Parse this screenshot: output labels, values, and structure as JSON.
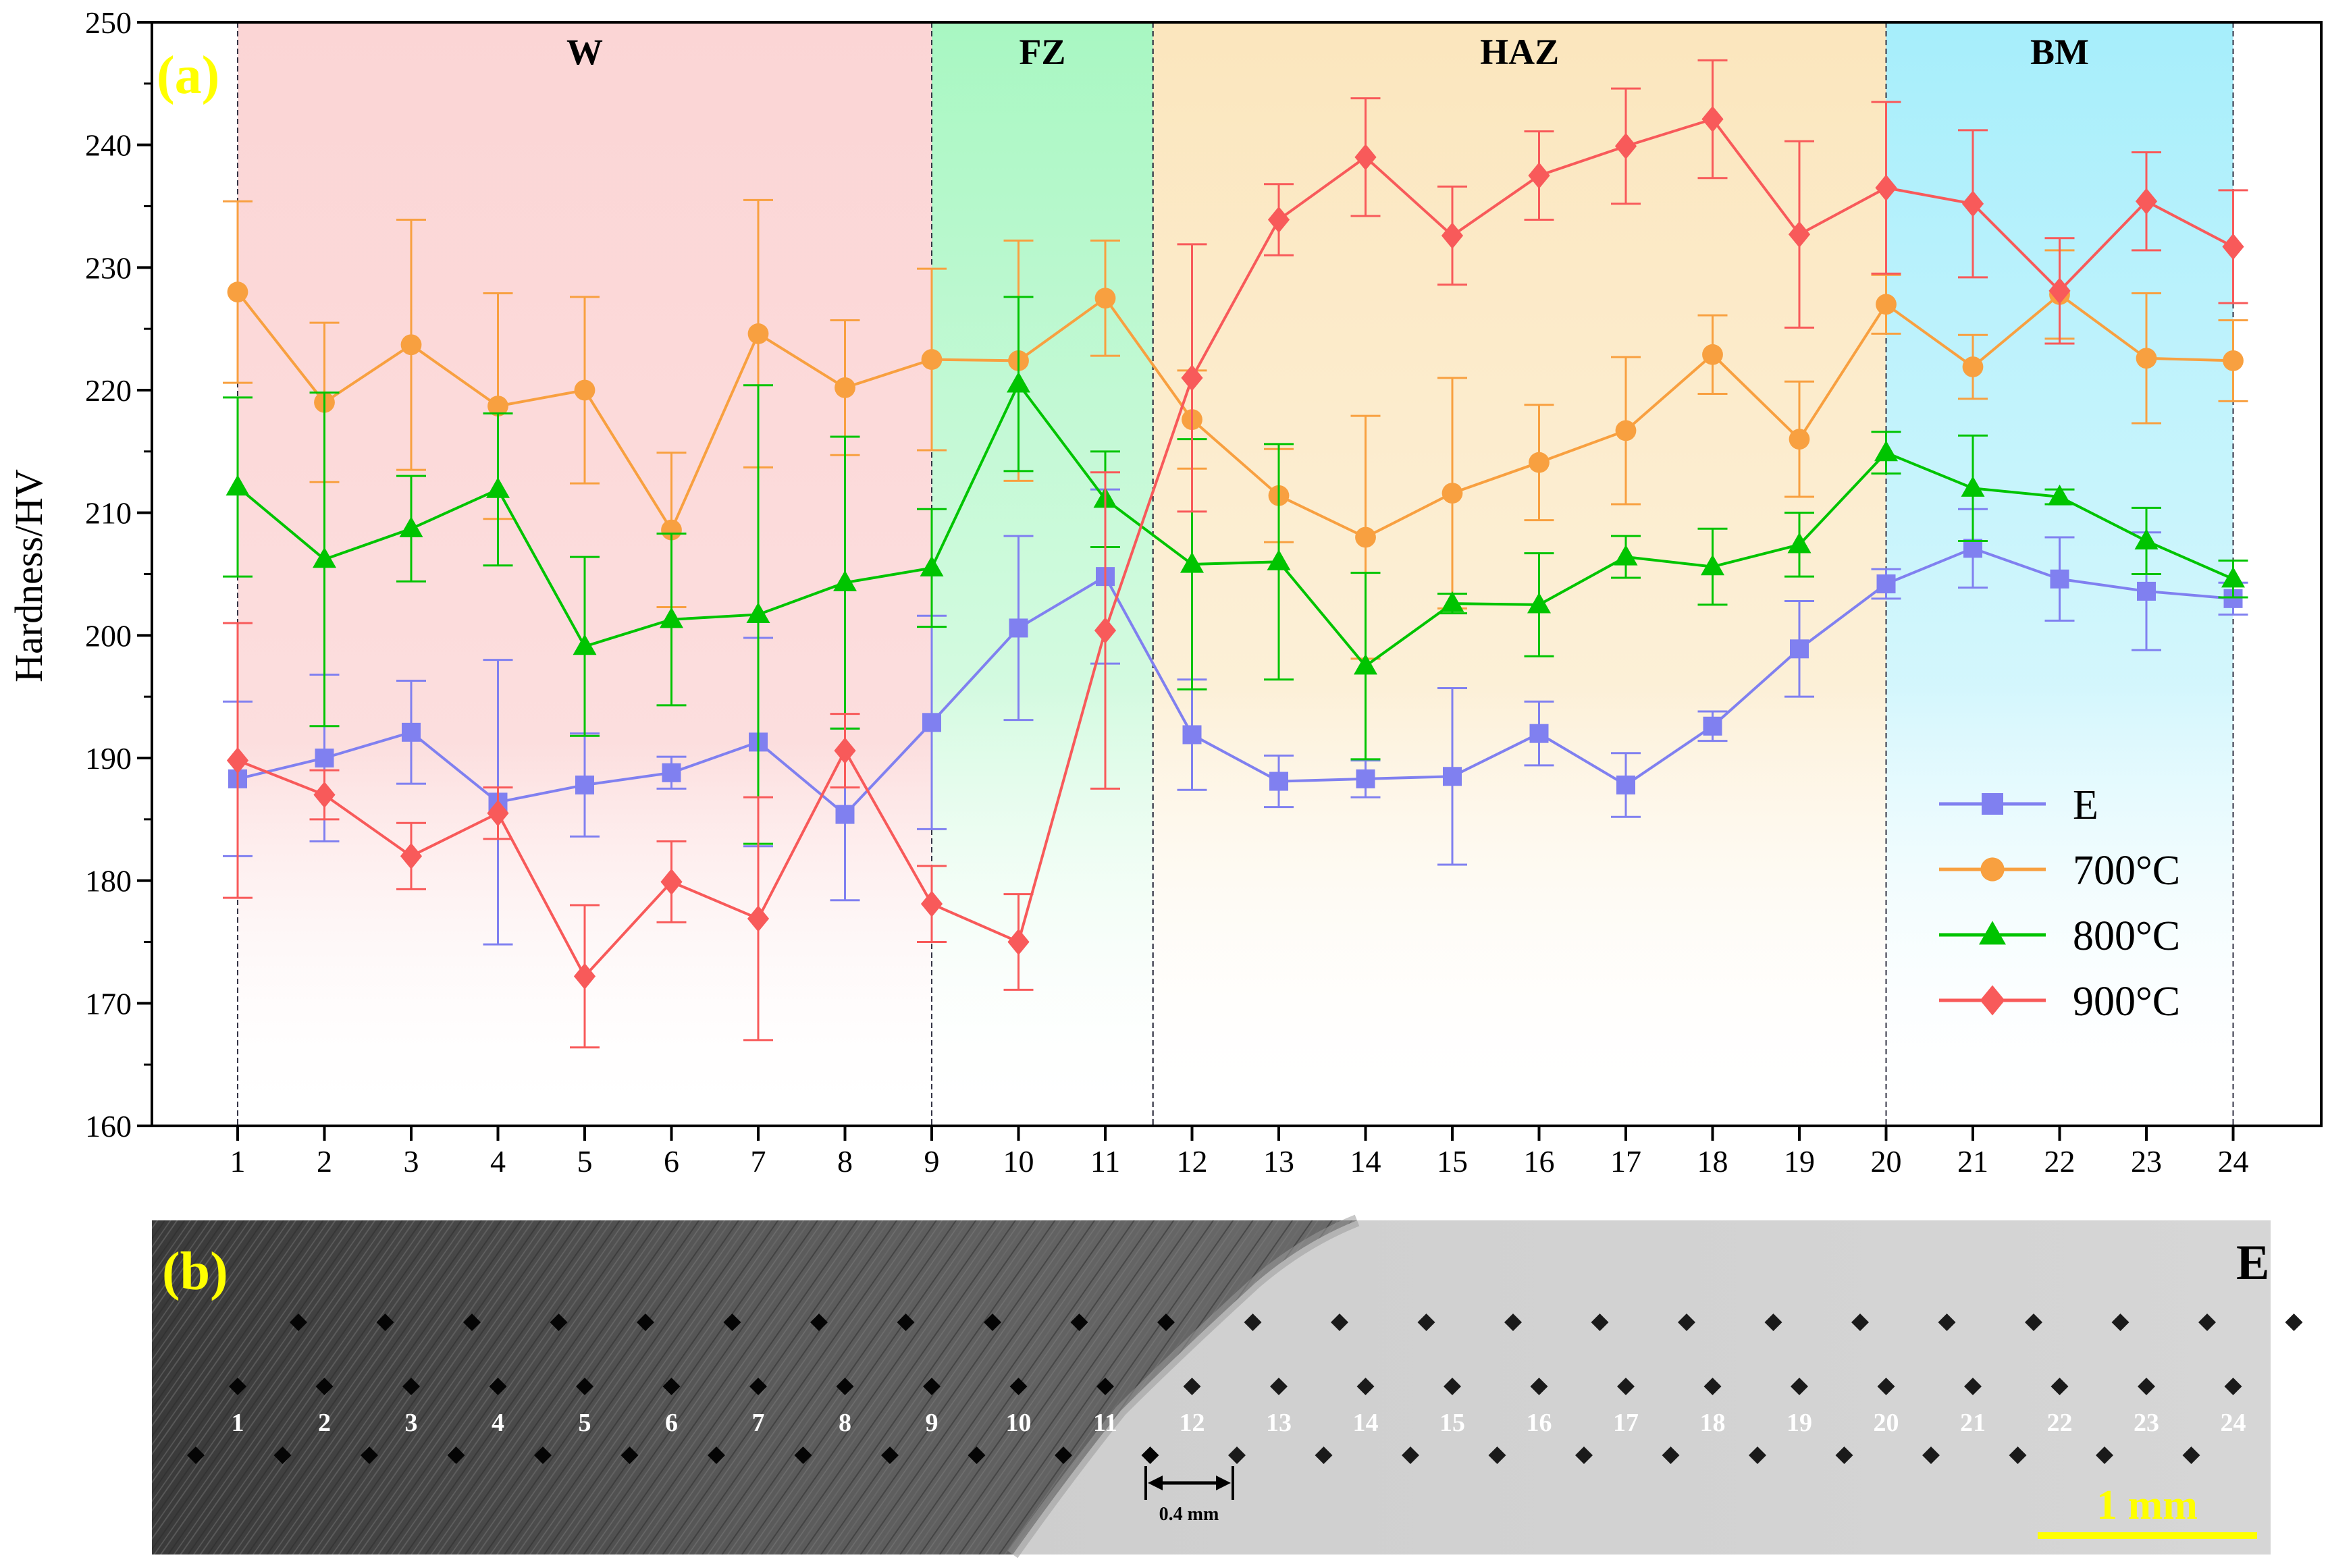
{
  "chart_data": {
    "type": "line",
    "panel_a_label": "(a)",
    "panel_b_label": "(b)",
    "xlabel": "",
    "ylabel": "Hardness/HV",
    "ylim": [
      160,
      250
    ],
    "yticks": [
      160,
      170,
      180,
      190,
      200,
      210,
      220,
      230,
      240,
      250
    ],
    "x": [
      1,
      2,
      3,
      4,
      5,
      6,
      7,
      8,
      9,
      10,
      11,
      12,
      13,
      14,
      15,
      16,
      17,
      18,
      19,
      20,
      21,
      22,
      23,
      24
    ],
    "regions": [
      {
        "label": "W",
        "from": 1,
        "to": 9,
        "color": "#f4a0a0"
      },
      {
        "label": "FZ",
        "from": 9,
        "to": 11.55,
        "color": "#54ee84"
      },
      {
        "label": "HAZ",
        "from": 11.55,
        "to": 20,
        "color": "#f9cd7a"
      },
      {
        "label": "BM",
        "from": 20,
        "to": 24,
        "color": "#48ddf6"
      }
    ],
    "series": [
      {
        "name": "E",
        "marker": "square",
        "color": "#8080f0",
        "values": [
          188.3,
          190.0,
          192.1,
          186.4,
          187.8,
          188.8,
          191.3,
          185.4,
          192.9,
          200.6,
          204.8,
          191.9,
          188.1,
          188.3,
          188.5,
          192.0,
          187.8,
          192.6,
          198.9,
          204.2,
          207.1,
          204.6,
          203.6,
          203.0
        ],
        "errors": [
          6.3,
          6.8,
          4.2,
          11.6,
          4.2,
          1.3,
          8.5,
          7.0,
          8.7,
          7.5,
          7.1,
          4.5,
          2.1,
          1.5,
          7.2,
          2.6,
          2.6,
          1.2,
          3.9,
          1.2,
          3.2,
          3.4,
          4.8,
          1.3
        ]
      },
      {
        "name": "700°C",
        "marker": "circle",
        "color": "#f8a040",
        "values": [
          228.0,
          219.0,
          223.7,
          218.7,
          220.0,
          208.6,
          224.6,
          220.2,
          222.5,
          222.4,
          227.5,
          217.6,
          211.4,
          208.0,
          211.6,
          214.1,
          216.7,
          222.9,
          216.0,
          227.0,
          221.9,
          227.8,
          222.6,
          222.4
        ]
      },
      {
        "name": "800°C",
        "marker": "triangle",
        "color": "#00c400",
        "values": [
          212.1,
          206.2,
          208.7,
          211.9,
          199.1,
          201.3,
          201.7,
          204.3,
          205.5,
          220.5,
          211.1,
          205.8,
          206.0,
          197.5,
          202.6,
          202.5,
          206.4,
          205.6,
          207.4,
          214.9,
          212.0,
          211.3,
          207.7,
          204.6
        ]
      },
      {
        "name": "900°C",
        "marker": "diamond",
        "color": "#f85a5a",
        "values": [
          189.8,
          187.0,
          182.0,
          185.5,
          172.2,
          179.9,
          176.9,
          190.6,
          178.1,
          175.0,
          200.4,
          221.0,
          233.9,
          239.0,
          232.6,
          237.5,
          239.9,
          242.1,
          232.7,
          236.5,
          235.2,
          228.1,
          235.4,
          231.7
        ]
      }
    ]
  },
  "micrograph": {
    "sample_label": "E",
    "indent_labels": [
      "1",
      "2",
      "3",
      "4",
      "5",
      "6",
      "7",
      "8",
      "9",
      "10",
      "11",
      "12",
      "13",
      "14",
      "15",
      "16",
      "17",
      "18",
      "19",
      "20",
      "21",
      "22",
      "23",
      "24"
    ],
    "spacing_label": "0.4 mm",
    "scale_bar_label": "1 mm"
  }
}
